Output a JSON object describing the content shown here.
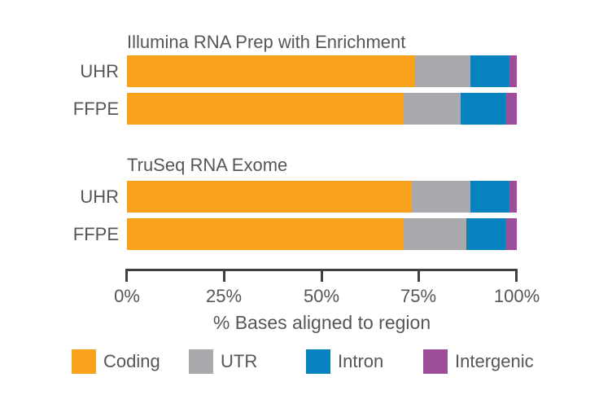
{
  "colors": {
    "coding": "#F7A11C",
    "utr": "#A7A9AC",
    "intron": "#0782C1",
    "intergenic": "#9C4F98",
    "axis": "#3F4042",
    "text": "#55565A",
    "background": "#FFFFFF"
  },
  "chart_data": {
    "type": "bar",
    "orientation": "horizontal",
    "stacked": true,
    "xlabel": "% Bases aligned to region",
    "xlim": [
      0,
      100
    ],
    "x_ticks": [
      "0%",
      "25%",
      "50%",
      "75%",
      "100%"
    ],
    "x_tick_percents": [
      0,
      25,
      50,
      75,
      100
    ],
    "grid": false,
    "legend_position": "bottom",
    "legend": [
      {
        "label": "Coding",
        "color": "#F7A11C"
      },
      {
        "label": "UTR",
        "color": "#A7A9AC"
      },
      {
        "label": "Intron",
        "color": "#0782C1"
      },
      {
        "label": "Intergenic",
        "color": "#9C4F98"
      }
    ],
    "segment_order": [
      "Coding",
      "UTR",
      "Intron",
      "Intergenic"
    ],
    "groups": [
      {
        "title": "Illumina RNA Prep with Enrichment",
        "rows": [
          {
            "label": "UHR",
            "values": [
              74,
              14,
              10,
              2
            ]
          },
          {
            "label": "FFPE",
            "values": [
              71,
              14.5,
              11.5,
              3
            ]
          }
        ]
      },
      {
        "title": "TruSeq RNA Exome",
        "rows": [
          {
            "label": "UHR",
            "values": [
              73,
              15,
              10,
              2
            ]
          },
          {
            "label": "FFPE",
            "values": [
              71,
              16,
              10,
              3
            ]
          }
        ]
      }
    ]
  }
}
